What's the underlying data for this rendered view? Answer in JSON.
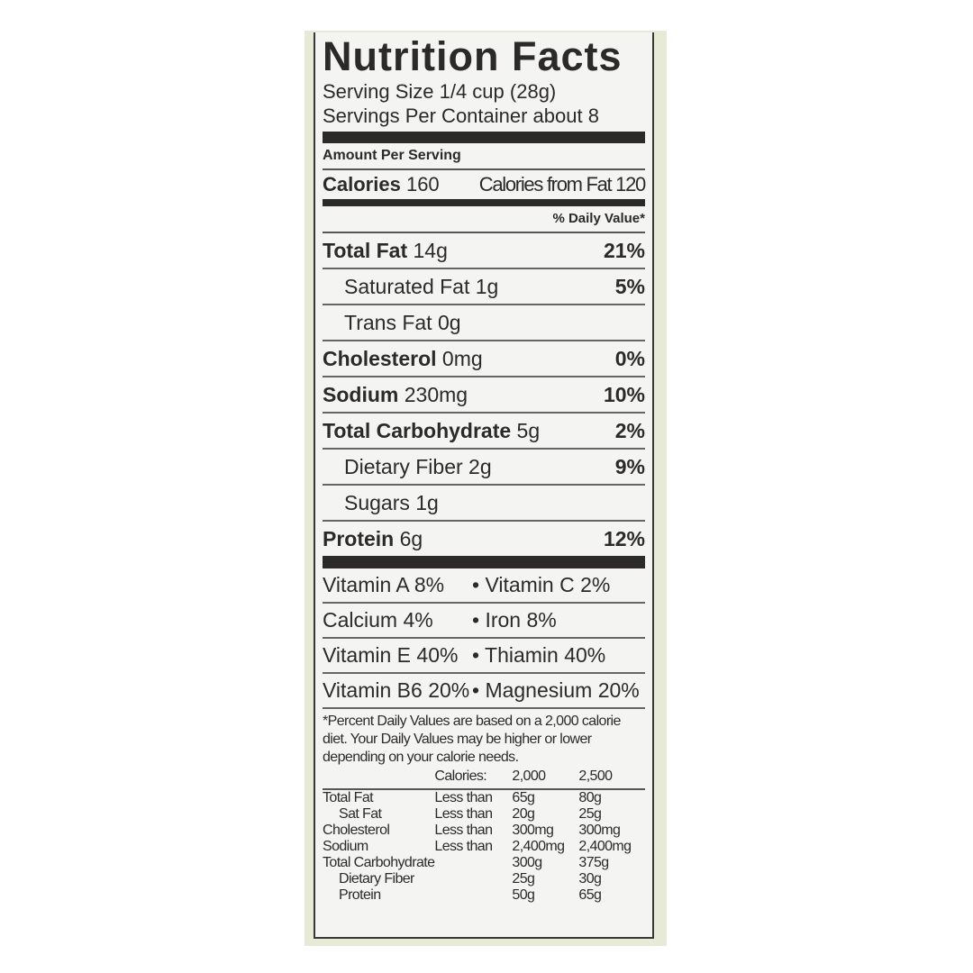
{
  "title": "Nutrition Facts",
  "serving_size": "Serving Size 1/4 cup (28g)",
  "servings_per_container": "Servings Per Container about 8",
  "amount_per_serving": "Amount Per Serving",
  "calories": {
    "label": "Calories",
    "value": "160",
    "from_fat": "Calories from Fat 120"
  },
  "daily_value_header": "% Daily Value*",
  "nutrients": [
    {
      "name": "Total Fat",
      "amount": "14g",
      "dv": "21%",
      "bold": true
    },
    {
      "name": "Saturated Fat",
      "amount": "1g",
      "dv": "5%",
      "bold": false
    },
    {
      "name": "Trans Fat",
      "amount": "0g",
      "dv": "",
      "bold": false
    },
    {
      "name": "Cholesterol",
      "amount": "0mg",
      "dv": "0%",
      "bold": true
    },
    {
      "name": "Sodium",
      "amount": "230mg",
      "dv": "10%",
      "bold": true
    },
    {
      "name": "Total Carbohydrate",
      "amount": "5g",
      "dv": "2%",
      "bold": true
    },
    {
      "name": "Dietary Fiber",
      "amount": "2g",
      "dv": "9%",
      "bold": false
    },
    {
      "name": "Sugars",
      "amount": "1g",
      "dv": "",
      "bold": false
    },
    {
      "name": "Protein",
      "amount": "6g",
      "dv": "12%",
      "bold": true
    }
  ],
  "vitamins": [
    [
      "Vitamin A 8%",
      "• Vitamin C 2%"
    ],
    [
      "Calcium 4%",
      "• Iron 8%"
    ],
    [
      "Vitamin E 40%",
      "• Thiamin 40%"
    ],
    [
      "Vitamin B6 20%",
      "• Magnesium 20%"
    ]
  ],
  "footnote": "*Percent Daily Values are based on a 2,000 calorie diet. Your Daily Values may be higher or lower depending on your calorie needs.",
  "reference_table": {
    "header": [
      "",
      "Calories:",
      "2,000",
      "2,500"
    ],
    "rows": [
      [
        "Total Fat",
        "Less than",
        "65g",
        "80g"
      ],
      [
        "Sat Fat",
        "Less than",
        "20g",
        "25g"
      ],
      [
        "Cholesterol",
        "Less than",
        "300mg",
        "300mg"
      ],
      [
        "Sodium",
        "Less than",
        "2,400mg",
        "2,400mg"
      ],
      [
        "Total Carbohydrate",
        "",
        "300g",
        "375g"
      ],
      [
        "Dietary Fiber",
        "",
        "25g",
        "30g"
      ],
      [
        "Protein",
        "",
        "50g",
        "65g"
      ]
    ]
  }
}
